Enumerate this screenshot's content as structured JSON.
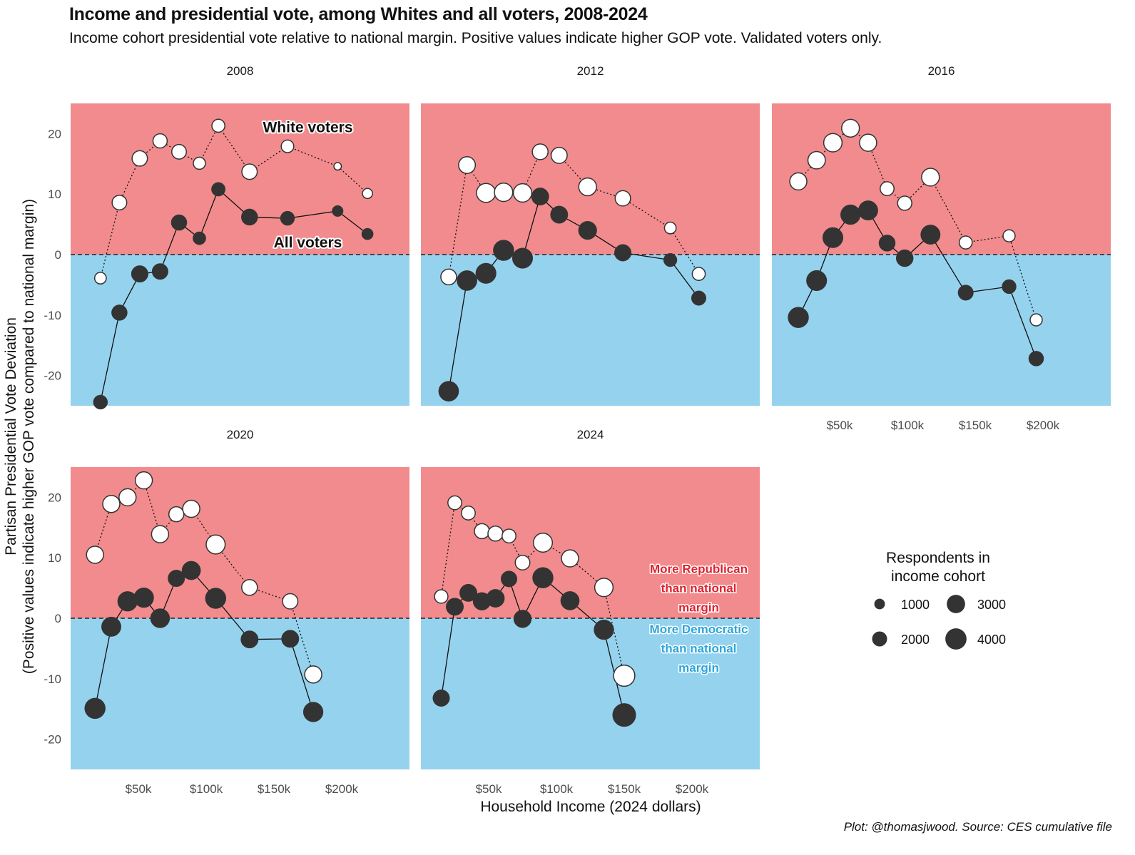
{
  "chart_data": {
    "type": "scatter",
    "subtype": "faceted line + bubble",
    "title": "Income and presidential vote, among Whites and all voters, 2008-2024",
    "subtitle": "Income cohort presidential vote relative to national margin. Positive values indicate higher GOP vote. Validated voters only.",
    "caption": "Plot: @thomasjwood. Source: CES cumulative file",
    "xlabel": "Household Income (2024 dollars)",
    "ylabel": "Partisan Presidential Vote Deviation",
    "ylabel2": "(Positive values indicate higher GOP vote compared to national margin)",
    "xlim": [
      0,
      250
    ],
    "ylim": [
      -25,
      25
    ],
    "x_units": "thousands of 2024 dollars",
    "x_ticks": [
      50,
      100,
      150,
      200
    ],
    "x_tick_labels": [
      "$50k",
      "$100k",
      "$150k",
      "$200k"
    ],
    "y_ticks": [
      -20,
      -10,
      0,
      10,
      20
    ],
    "y_tick_labels": [
      "-20",
      "-10",
      "0",
      "10",
      "20"
    ],
    "reference_line": 0,
    "background_colors": {
      "positive": "#f28b8d",
      "negative": "#95d2ee"
    },
    "colors": {
      "white_voters_fill": "#ffffff",
      "all_voters_fill": "#333333",
      "point_stroke": "#333333",
      "republican_text": "#e0202e",
      "democratic_text": "#2aa6dc"
    },
    "annotations": {
      "white_voters": "White voters",
      "all_voters": "All voters",
      "republican": [
        "More Republican",
        "than national",
        "margin"
      ],
      "democratic": [
        "More Democratic",
        "than national",
        "margin"
      ]
    },
    "legend": {
      "title": [
        "Respondents in",
        "income cohort"
      ],
      "entries": [
        {
          "label": "1000",
          "value": 1000
        },
        {
          "label": "2000",
          "value": 2000
        },
        {
          "label": "3000",
          "value": 3000
        },
        {
          "label": "4000",
          "value": 4000
        }
      ],
      "placement": "right, bottom row empty facet"
    },
    "facets": [
      {
        "year": "2008",
        "series": [
          {
            "name": "White voters",
            "style": "dotted",
            "x": [
              22,
              36,
              51,
              66,
              80,
              95,
              109,
              132,
              160,
              197,
              219
            ],
            "y": [
              -3.9,
              8.6,
              15.9,
              18.8,
              17.0,
              15.1,
              21.3,
              13.7,
              17.9,
              14.6,
              10.1
            ],
            "n": [
              1200,
              1900,
              2100,
              1800,
              1900,
              1300,
              1500,
              2100,
              1400,
              500,
              900
            ]
          },
          {
            "name": "All voters",
            "style": "solid",
            "x": [
              22,
              36,
              51,
              66,
              80,
              95,
              109,
              132,
              160,
              197,
              219
            ],
            "y": [
              -24.4,
              -9.6,
              -3.2,
              -2.8,
              5.3,
              2.7,
              10.8,
              6.2,
              6.0,
              7.2,
              3.4
            ],
            "n": [
              1800,
              2200,
              2500,
              2300,
              2200,
              1500,
              1700,
              2400,
              1800,
              1100,
              1200
            ]
          }
        ]
      },
      {
        "year": "2012",
        "series": [
          {
            "name": "White voters",
            "style": "dotted",
            "x": [
              20.5,
              34,
              48,
              61,
              75,
              88,
              102,
              123,
              149,
              184,
              205
            ],
            "y": [
              -3.7,
              14.8,
              10.2,
              10.3,
              10.2,
              17.0,
              16.4,
              11.2,
              9.3,
              4.4,
              -3.2
            ],
            "n": [
              2200,
              2500,
              3200,
              3000,
              3000,
              2200,
              2300,
              2800,
              2100,
              1200,
              1500
            ]
          },
          {
            "name": "All voters",
            "style": "solid",
            "x": [
              20.5,
              34,
              48,
              61,
              75,
              88,
              102,
              123,
              149,
              184,
              205
            ],
            "y": [
              -22.6,
              -4.3,
              -3.1,
              0.7,
              -0.6,
              9.6,
              6.6,
              4.0,
              0.3,
              -0.9,
              -7.2
            ],
            "n": [
              3600,
              3600,
              3700,
              3800,
              3700,
              2700,
              2700,
              3000,
              2500,
              1600,
              1900
            ]
          }
        ]
      },
      {
        "year": "2016",
        "series": [
          {
            "name": "White voters",
            "style": "dotted",
            "x": [
              19.5,
              33,
              45,
              58,
              71,
              85,
              98,
              117,
              143,
              175,
              195
            ],
            "y": [
              12.1,
              15.6,
              18.5,
              20.9,
              18.5,
              10.9,
              8.5,
              12.8,
              2.0,
              3.1,
              -10.8
            ],
            "n": [
              2600,
              2700,
              3000,
              2800,
              2600,
              1700,
              1800,
              2800,
              1500,
              1300,
              1300
            ]
          },
          {
            "name": "All voters",
            "style": "solid",
            "x": [
              19.5,
              33,
              45,
              58,
              71,
              85,
              98,
              117,
              143,
              175,
              195
            ],
            "y": [
              -10.4,
              -4.3,
              2.8,
              6.6,
              7.3,
              1.9,
              -0.6,
              3.3,
              -6.3,
              -5.3,
              -17.2
            ],
            "n": [
              3800,
              3700,
              3700,
              3500,
              3400,
              2400,
              2600,
              3400,
              2100,
              1800,
              2000
            ]
          }
        ]
      },
      {
        "year": "2020",
        "series": [
          {
            "name": "White voters",
            "style": "dotted",
            "x": [
              18,
              30,
              42,
              54,
              66,
              78,
              89,
              107,
              132,
              162,
              179
            ],
            "y": [
              10.5,
              18.9,
              20.0,
              22.8,
              13.9,
              17.2,
              18.1,
              12.2,
              5.1,
              2.8,
              -9.3
            ],
            "n": [
              2600,
              2600,
              2600,
              2600,
              2600,
              2000,
              2600,
              3200,
              2200,
              2100,
              2600
            ]
          },
          {
            "name": "All voters",
            "style": "solid",
            "x": [
              18,
              30,
              42,
              54,
              66,
              78,
              89,
              107,
              132,
              162,
              179
            ],
            "y": [
              -14.9,
              -1.4,
              2.8,
              3.4,
              0.0,
              6.6,
              7.9,
              3.3,
              -3.5,
              -3.4,
              -15.5
            ],
            "n": [
              3800,
              3400,
              3500,
              3500,
              3300,
              2500,
              3100,
              3800,
              2700,
              2700,
              3500
            ]
          }
        ]
      },
      {
        "year": "2024",
        "series": [
          {
            "name": "White voters",
            "style": "dotted",
            "x": [
              15,
              25,
              35,
              45,
              55,
              65,
              75,
              90,
              110,
              135,
              150
            ],
            "y": [
              3.6,
              19.1,
              17.4,
              14.4,
              14.0,
              13.6,
              9.2,
              12.5,
              9.9,
              5.1,
              -9.5
            ],
            "n": [
              1600,
              1700,
              1700,
              2000,
              2000,
              1700,
              1900,
              3200,
              2600,
              3000,
              4000
            ]
          },
          {
            "name": "All voters",
            "style": "solid",
            "x": [
              15,
              25,
              35,
              45,
              55,
              65,
              75,
              90,
              110,
              135,
              150
            ],
            "y": [
              -13.2,
              1.9,
              4.2,
              2.8,
              3.3,
              6.5,
              -0.1,
              6.7,
              2.9,
              -1.9,
              -16.0
            ],
            "n": [
              2500,
              2700,
              2700,
              2800,
              2900,
              2300,
              2800,
              3800,
              3100,
              3500,
              4800
            ]
          }
        ]
      }
    ]
  }
}
